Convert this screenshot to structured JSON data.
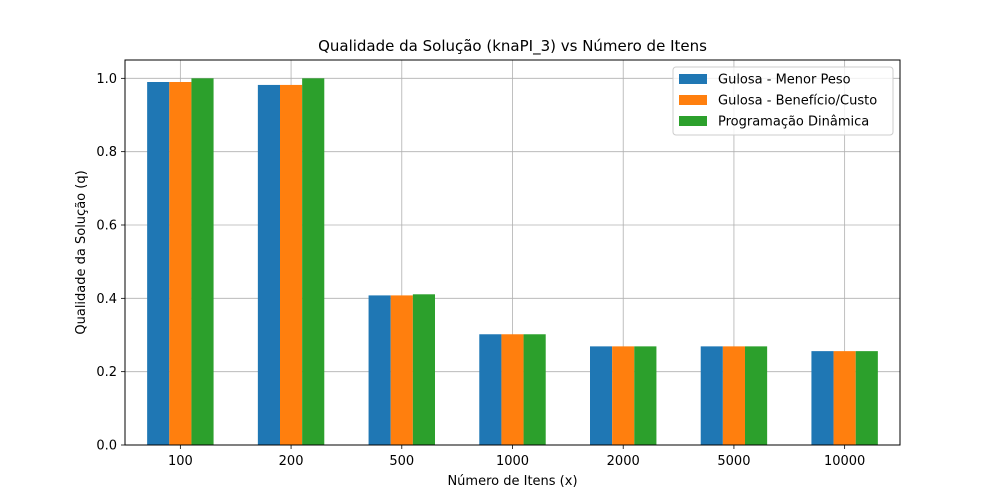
{
  "chart_data": {
    "type": "bar",
    "title": "Qualidade da Solução (knaPI_3) vs Número de Itens",
    "xlabel": "Número de Itens (x)",
    "ylabel": "Qualidade da Solução (q)",
    "categories": [
      "100",
      "200",
      "500",
      "1000",
      "2000",
      "5000",
      "10000"
    ],
    "ylim": [
      0,
      1.05
    ],
    "yticks": [
      0.0,
      0.2,
      0.4,
      0.6,
      0.8,
      1.0
    ],
    "ytick_labels": [
      "0.0",
      "0.2",
      "0.4",
      "0.6",
      "0.8",
      "1.0"
    ],
    "grid": true,
    "legend_position": "top-right",
    "series": [
      {
        "name": "Gulosa - Menor Peso",
        "color": "#1f77b4",
        "values": [
          0.99,
          0.982,
          0.408,
          0.302,
          0.269,
          0.269,
          0.256
        ]
      },
      {
        "name": "Gulosa - Benefício/Custo",
        "color": "#ff7f0e",
        "values": [
          0.99,
          0.982,
          0.408,
          0.302,
          0.269,
          0.269,
          0.256
        ]
      },
      {
        "name": "Programação Dinâmica",
        "color": "#2ca02c",
        "values": [
          1.0,
          1.0,
          0.411,
          0.302,
          0.269,
          0.269,
          0.256
        ]
      }
    ]
  }
}
